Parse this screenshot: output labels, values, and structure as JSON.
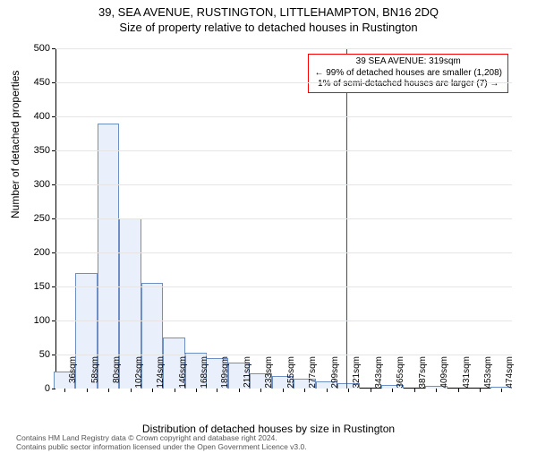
{
  "title_main": "39, SEA AVENUE, RUSTINGTON, LITTLEHAMPTON, BN16 2DQ",
  "title_sub": "Size of property relative to detached houses in Rustington",
  "y_axis_title": "Number of detached properties",
  "x_axis_title": "Distribution of detached houses by size in Rustington",
  "footer_line1": "Contains HM Land Registry data © Crown copyright and database right 2024.",
  "footer_line2": "Contains public sector information licensed under the Open Government Licence v3.0.",
  "chart": {
    "type": "histogram",
    "ylim": [
      0,
      500
    ],
    "ytick_step": 50,
    "background_color": "#ffffff",
    "grid_color": "#e5e5e5",
    "axis_color": "#000000",
    "bar_fill": "#e9f0fb",
    "bar_stroke": "#6d8fc4",
    "bar_stroke_width": 1,
    "marker_color": "#ff0000",
    "marker_x_value": 319,
    "x_range": [
      27,
      485
    ],
    "x_labels": [
      "36sqm",
      "58sqm",
      "80sqm",
      "102sqm",
      "124sqm",
      "146sqm",
      "168sqm",
      "189sqm",
      "211sqm",
      "233sqm",
      "255sqm",
      "277sqm",
      "299sqm",
      "321sqm",
      "343sqm",
      "365sqm",
      "387sqm",
      "409sqm",
      "431sqm",
      "453sqm",
      "474sqm"
    ],
    "x_label_values": [
      36,
      58,
      80,
      102,
      124,
      146,
      168,
      189,
      211,
      233,
      255,
      277,
      299,
      321,
      343,
      365,
      387,
      409,
      431,
      453,
      474
    ],
    "bars": [
      {
        "x": 36,
        "v": 25
      },
      {
        "x": 58,
        "v": 170
      },
      {
        "x": 80,
        "v": 390
      },
      {
        "x": 102,
        "v": 250
      },
      {
        "x": 124,
        "v": 155
      },
      {
        "x": 146,
        "v": 75
      },
      {
        "x": 168,
        "v": 52
      },
      {
        "x": 189,
        "v": 45
      },
      {
        "x": 211,
        "v": 38
      },
      {
        "x": 233,
        "v": 22
      },
      {
        "x": 255,
        "v": 18
      },
      {
        "x": 277,
        "v": 14
      },
      {
        "x": 299,
        "v": 10
      },
      {
        "x": 321,
        "v": 8
      },
      {
        "x": 343,
        "v": 0
      },
      {
        "x": 365,
        "v": 5
      },
      {
        "x": 387,
        "v": 0
      },
      {
        "x": 409,
        "v": 4
      },
      {
        "x": 431,
        "v": 0
      },
      {
        "x": 453,
        "v": 0
      },
      {
        "x": 474,
        "v": 3
      }
    ],
    "bar_width_units": 22
  },
  "annotation": {
    "line1": "39 SEA AVENUE: 319sqm",
    "line2": "← 99% of detached houses are smaller (1,208)",
    "line3": "1% of semi-detached houses are larger (7) →",
    "border_color": "#ff0000",
    "bg_color": "#ffffff",
    "fontsize": 10
  }
}
